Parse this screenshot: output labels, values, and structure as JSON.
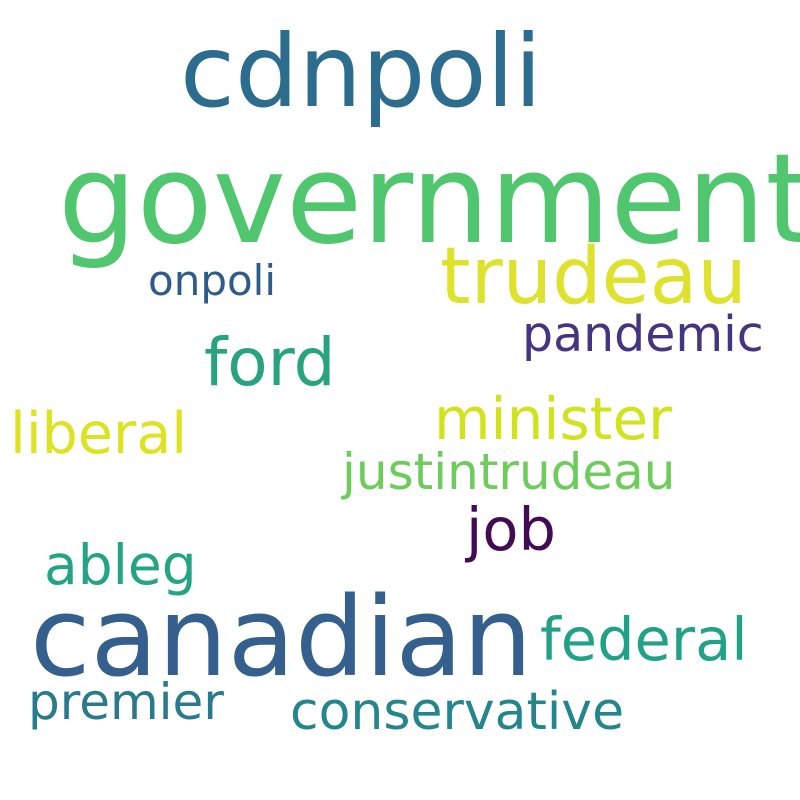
{
  "words": [
    {
      "text": "cdnpoli",
      "color": "#2c6c8e"
    },
    {
      "text": "government",
      "color": "#50c66e"
    },
    {
      "text": "trudeau",
      "color": "#dfe22c"
    },
    {
      "text": "onpoli",
      "color": "#2e5a8c"
    },
    {
      "text": "pandemic",
      "color": "#433580"
    },
    {
      "text": "ford",
      "color": "#27a37f"
    },
    {
      "text": "minister",
      "color": "#d2e21d"
    },
    {
      "text": "liberal",
      "color": "#dde322"
    },
    {
      "text": "justintrudeau",
      "color": "#6ccd5a"
    },
    {
      "text": "job",
      "color": "#440b55"
    },
    {
      "text": "ableg",
      "color": "#22a485"
    },
    {
      "text": "canadian",
      "color": "#355f8d"
    },
    {
      "text": "federal",
      "color": "#21a286"
    },
    {
      "text": "premier",
      "color": "#2a7a8e"
    },
    {
      "text": "conservative",
      "color": "#23868d"
    }
  ]
}
